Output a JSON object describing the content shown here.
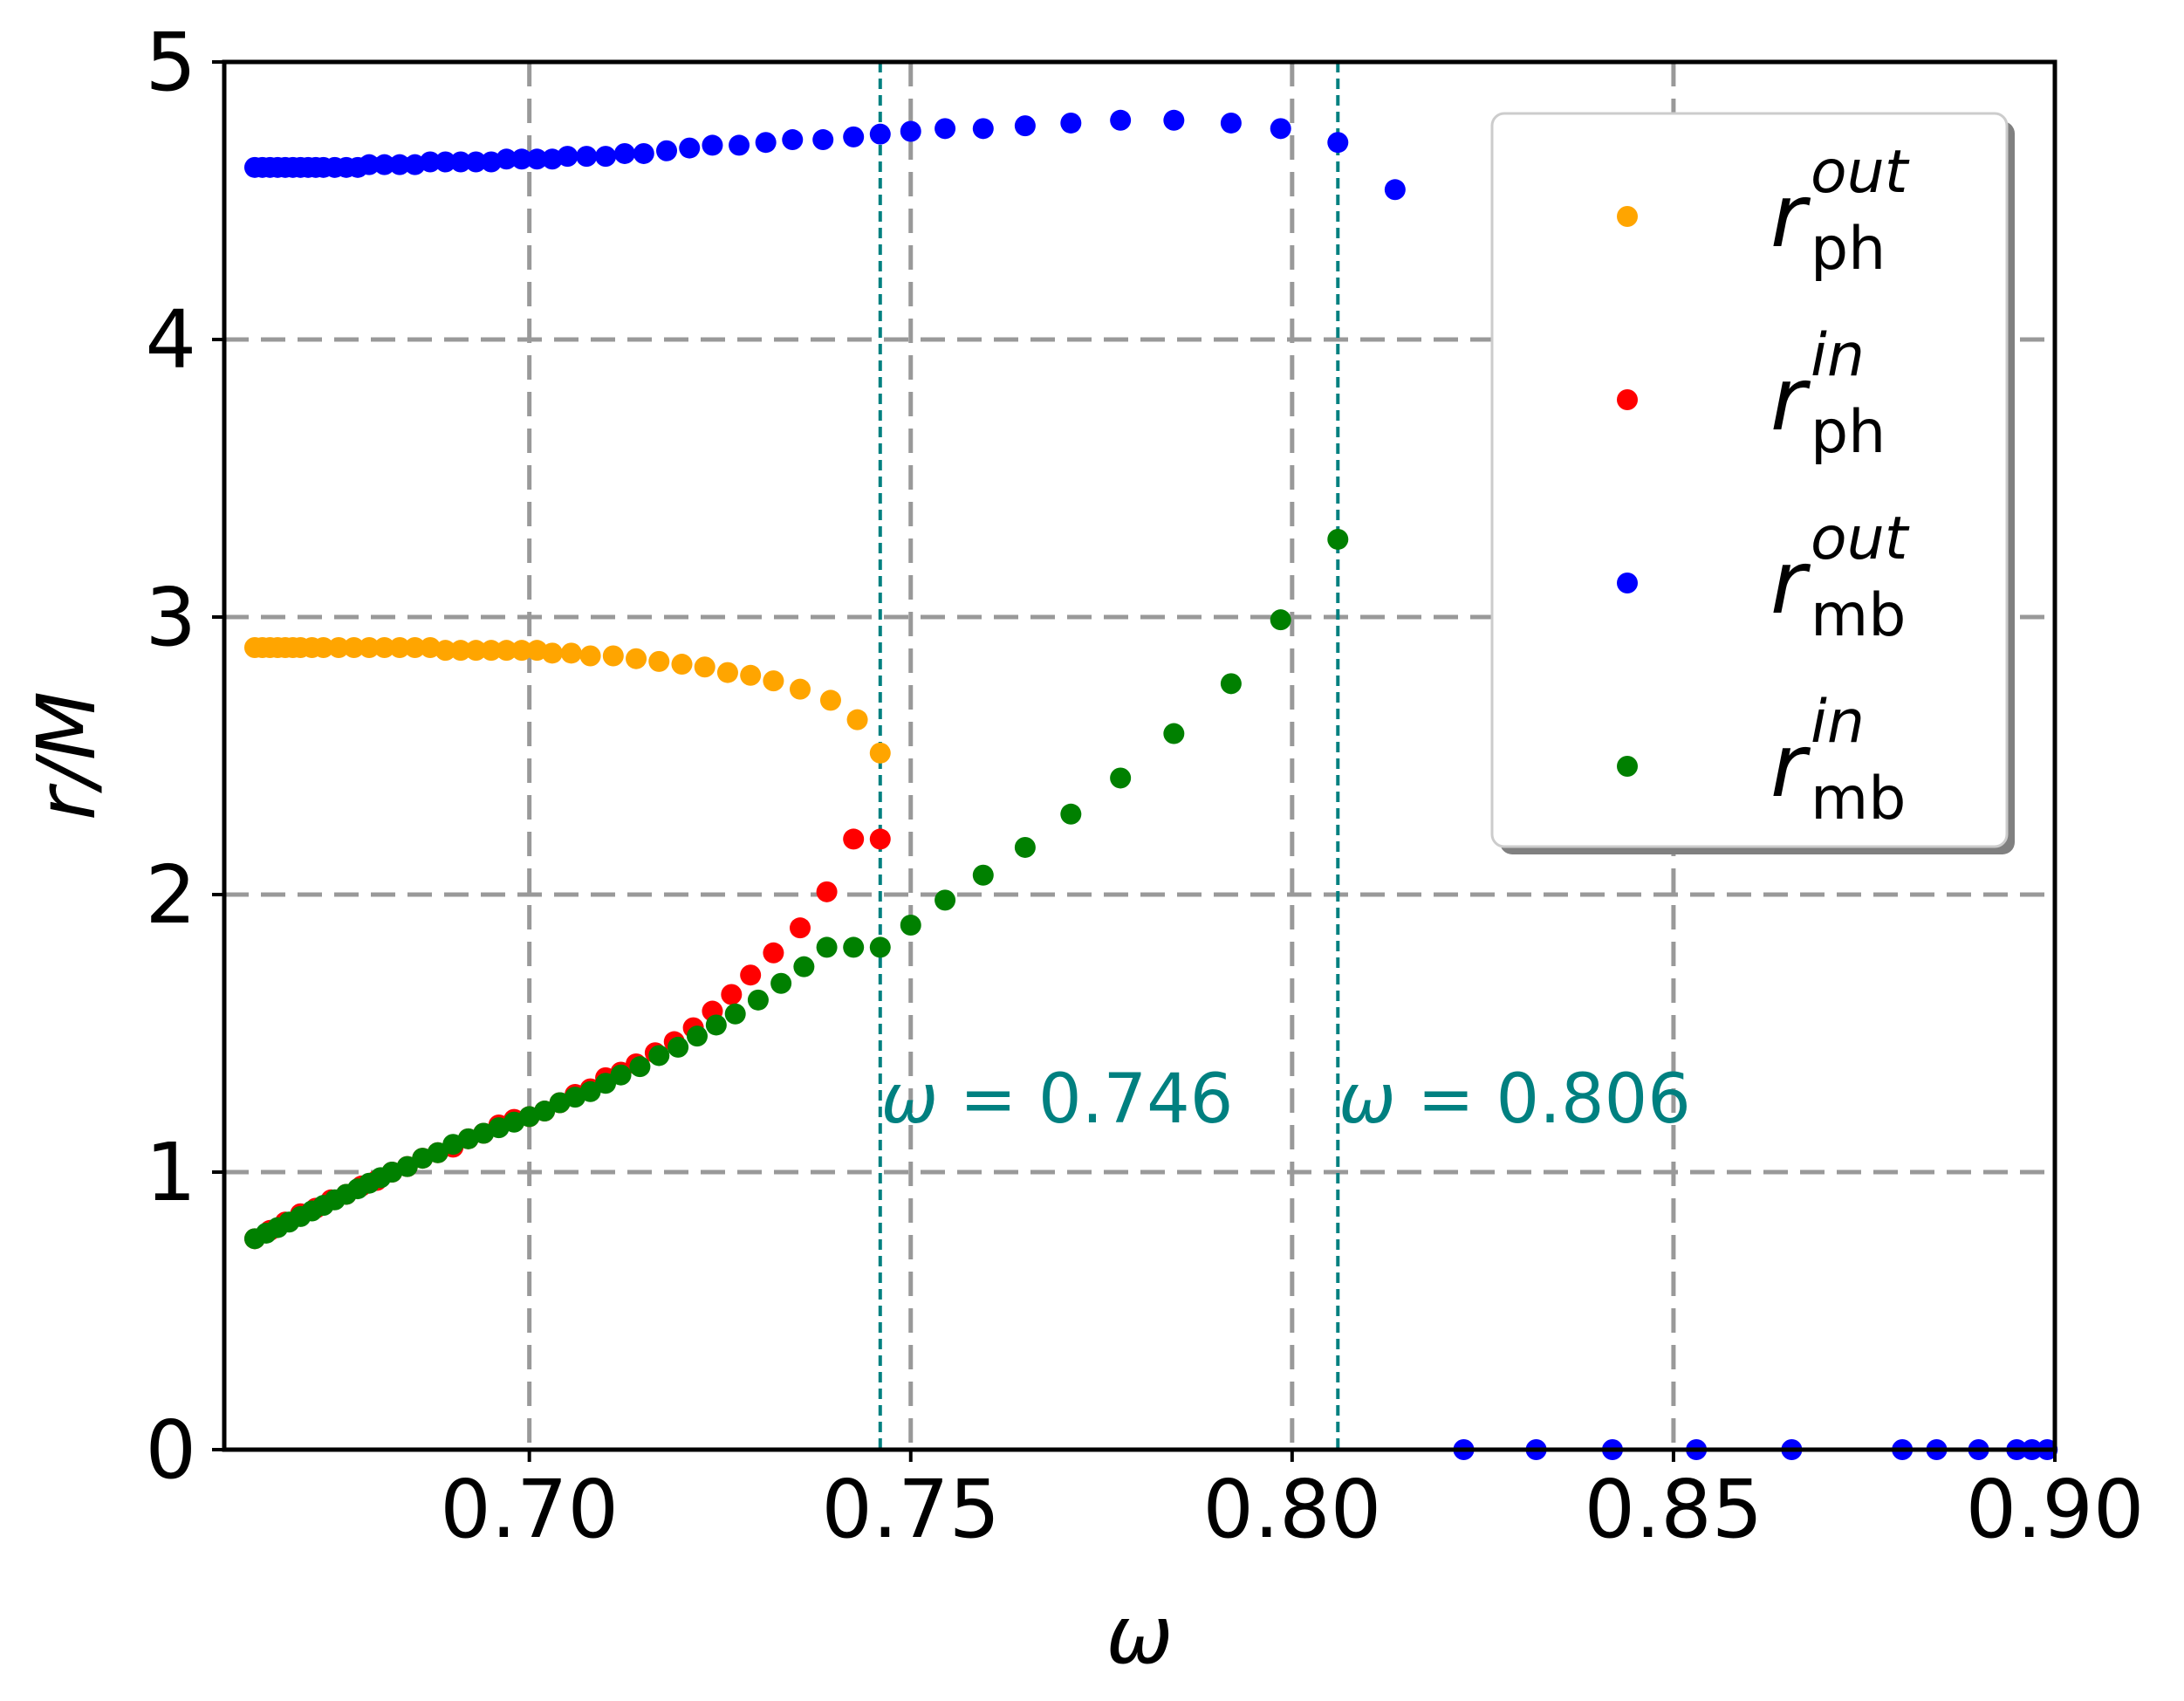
{
  "chart_data": {
    "type": "scatter",
    "xlabel": "ω",
    "ylabel": "r/M",
    "xlim": [
      0.66,
      0.9
    ],
    "ylim": [
      0,
      5
    ],
    "x_ticks": [
      "0.70",
      "0.75",
      "0.80",
      "0.85",
      "0.90"
    ],
    "x_tick_values": [
      0.7,
      0.75,
      0.8,
      0.85,
      0.9
    ],
    "y_ticks": [
      "0",
      "1",
      "2",
      "3",
      "4",
      "5"
    ],
    "y_tick_values": [
      0,
      1,
      2,
      3,
      4,
      5
    ],
    "grid": true,
    "grid_style": "dashed",
    "legend_position": "top-right",
    "vlines": [
      {
        "x": 0.746,
        "label_prefix": "ω",
        "label_value": "= 0.746",
        "color": "#008080"
      },
      {
        "x": 0.806,
        "label_prefix": "ω",
        "label_value": "= 0.806",
        "color": "#008080"
      }
    ],
    "series": [
      {
        "name": "r_ph^out",
        "legend_base": "r",
        "legend_sup": "out",
        "legend_sub": "ph",
        "color": "#ffa500",
        "x": [
          0.664,
          0.665,
          0.666,
          0.667,
          0.668,
          0.669,
          0.67,
          0.6715,
          0.673,
          0.675,
          0.677,
          0.679,
          0.681,
          0.683,
          0.685,
          0.687,
          0.689,
          0.691,
          0.693,
          0.695,
          0.697,
          0.699,
          0.701,
          0.703,
          0.7055,
          0.708,
          0.711,
          0.714,
          0.717,
          0.72,
          0.723,
          0.726,
          0.729,
          0.732,
          0.7355,
          0.7395,
          0.743,
          0.746
        ],
        "y": [
          2.89,
          2.89,
          2.89,
          2.89,
          2.89,
          2.89,
          2.89,
          2.89,
          2.89,
          2.89,
          2.89,
          2.89,
          2.89,
          2.89,
          2.89,
          2.89,
          2.88,
          2.88,
          2.88,
          2.88,
          2.88,
          2.88,
          2.88,
          2.87,
          2.87,
          2.86,
          2.86,
          2.85,
          2.84,
          2.83,
          2.82,
          2.8,
          2.79,
          2.77,
          2.74,
          2.7,
          2.63,
          2.51
        ]
      },
      {
        "name": "r_ph^in",
        "legend_base": "r",
        "legend_sup": "in",
        "legend_sub": "ph",
        "color": "#ff0000",
        "x": [
          0.664,
          0.666,
          0.668,
          0.67,
          0.672,
          0.674,
          0.676,
          0.678,
          0.68,
          0.682,
          0.684,
          0.686,
          0.688,
          0.69,
          0.692,
          0.694,
          0.696,
          0.698,
          0.7,
          0.702,
          0.704,
          0.706,
          0.708,
          0.71,
          0.712,
          0.714,
          0.7165,
          0.719,
          0.7215,
          0.724,
          0.7265,
          0.729,
          0.732,
          0.7355,
          0.739,
          0.7425,
          0.746
        ],
        "y": [
          0.76,
          0.79,
          0.82,
          0.85,
          0.87,
          0.9,
          0.92,
          0.95,
          0.97,
          1.0,
          1.02,
          1.05,
          1.07,
          1.09,
          1.12,
          1.14,
          1.17,
          1.19,
          1.2,
          1.22,
          1.25,
          1.28,
          1.3,
          1.34,
          1.36,
          1.39,
          1.43,
          1.47,
          1.52,
          1.58,
          1.64,
          1.71,
          1.79,
          1.88,
          2.01,
          2.2,
          2.2
        ]
      },
      {
        "name": "r_mb^out",
        "legend_base": "r",
        "legend_sup": "out",
        "legend_sub": "mb",
        "color": "#0000ff",
        "x": [
          0.664,
          0.665,
          0.666,
          0.667,
          0.668,
          0.669,
          0.67,
          0.671,
          0.672,
          0.673,
          0.6745,
          0.676,
          0.6775,
          0.679,
          0.681,
          0.683,
          0.685,
          0.687,
          0.689,
          0.691,
          0.693,
          0.695,
          0.697,
          0.699,
          0.701,
          0.703,
          0.705,
          0.7075,
          0.71,
          0.7125,
          0.715,
          0.718,
          0.721,
          0.724,
          0.7275,
          0.731,
          0.7345,
          0.7385,
          0.7425,
          0.746,
          0.75,
          0.7545,
          0.7595,
          0.765,
          0.771,
          0.7775,
          0.7845,
          0.792,
          0.7985,
          0.806,
          0.8135,
          0.8225,
          0.832,
          0.842,
          0.853,
          0.8655,
          0.88,
          0.8845,
          0.89,
          0.895,
          0.897,
          0.899
        ],
        "y": [
          4.62,
          4.62,
          4.62,
          4.62,
          4.62,
          4.62,
          4.62,
          4.62,
          4.62,
          4.62,
          4.62,
          4.62,
          4.62,
          4.63,
          4.63,
          4.63,
          4.63,
          4.64,
          4.64,
          4.64,
          4.64,
          4.64,
          4.65,
          4.65,
          4.65,
          4.65,
          4.66,
          4.66,
          4.66,
          4.67,
          4.67,
          4.68,
          4.69,
          4.7,
          4.7,
          4.71,
          4.72,
          4.72,
          4.73,
          4.74,
          4.75,
          4.76,
          4.76,
          4.77,
          4.78,
          4.79,
          4.79,
          4.78,
          4.76,
          4.71,
          4.54,
          0,
          0,
          0,
          0,
          0,
          0,
          0,
          0,
          0,
          0,
          0
        ]
      },
      {
        "name": "r_mb^in",
        "legend_base": "r",
        "legend_sup": "in",
        "legend_sub": "mb",
        "color": "#008000",
        "x": [
          0.664,
          0.6655,
          0.667,
          0.6685,
          0.67,
          0.6715,
          0.673,
          0.6745,
          0.676,
          0.6775,
          0.679,
          0.6805,
          0.682,
          0.684,
          0.686,
          0.688,
          0.69,
          0.692,
          0.694,
          0.696,
          0.698,
          0.7,
          0.702,
          0.704,
          0.706,
          0.708,
          0.71,
          0.712,
          0.7145,
          0.717,
          0.7195,
          0.722,
          0.7245,
          0.727,
          0.73,
          0.733,
          0.736,
          0.739,
          0.7425,
          0.746,
          0.75,
          0.7545,
          0.7595,
          0.765,
          0.771,
          0.7775,
          0.7845,
          0.792,
          0.7985,
          0.806
        ],
        "y": [
          0.76,
          0.78,
          0.8,
          0.82,
          0.84,
          0.86,
          0.88,
          0.9,
          0.92,
          0.94,
          0.96,
          0.98,
          1.0,
          1.02,
          1.05,
          1.07,
          1.1,
          1.12,
          1.14,
          1.16,
          1.18,
          1.2,
          1.22,
          1.25,
          1.27,
          1.29,
          1.32,
          1.35,
          1.38,
          1.42,
          1.45,
          1.49,
          1.53,
          1.57,
          1.62,
          1.68,
          1.74,
          1.81,
          1.81,
          1.81,
          1.89,
          1.98,
          2.07,
          2.17,
          2.29,
          2.42,
          2.58,
          2.76,
          2.99,
          3.28
        ]
      }
    ]
  }
}
